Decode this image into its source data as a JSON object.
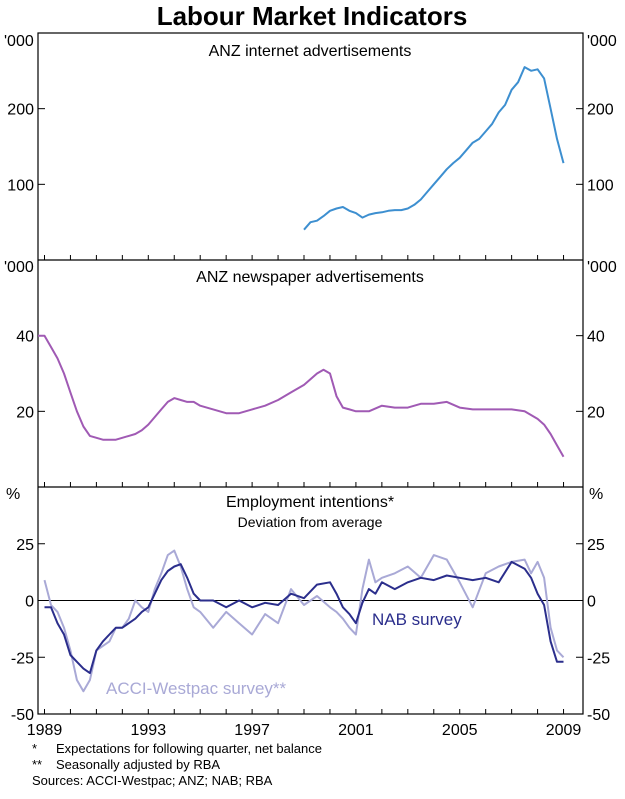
{
  "title": "Labour Market Indicators",
  "x_ticks": [
    "1989",
    "1993",
    "1997",
    "2001",
    "2005",
    "2009"
  ],
  "colors": {
    "anz_internet": "#3d8fd0",
    "anz_newspaper": "#a05ab4",
    "nab": "#2b2e8c",
    "acci": "#a9a9d6",
    "axis": "#000000"
  },
  "chart_data": [
    {
      "type": "line",
      "title": "ANZ internet advertisements",
      "unit_label": "'000",
      "ylim": [
        0,
        300
      ],
      "y_ticks": [
        "200",
        "100"
      ],
      "y_tick_values": [
        200,
        100
      ],
      "x_range": [
        1988.75,
        2009.75
      ],
      "series": [
        {
          "name": "ANZ internet advertisements",
          "x": [
            1999.0,
            1999.25,
            1999.5,
            1999.75,
            2000.0,
            2000.25,
            2000.5,
            2000.75,
            2001.0,
            2001.25,
            2001.5,
            2001.75,
            2002.0,
            2002.25,
            2002.5,
            2002.75,
            2003.0,
            2003.25,
            2003.5,
            2003.75,
            2004.0,
            2004.25,
            2004.5,
            2004.75,
            2005.0,
            2005.25,
            2005.5,
            2005.75,
            2006.0,
            2006.25,
            2006.5,
            2006.75,
            2007.0,
            2007.25,
            2007.5,
            2007.75,
            2008.0,
            2008.25,
            2008.5,
            2008.75,
            2009.0
          ],
          "values": [
            40,
            50,
            52,
            58,
            65,
            68,
            70,
            65,
            62,
            56,
            60,
            62,
            63,
            65,
            66,
            66,
            68,
            73,
            80,
            90,
            100,
            110,
            120,
            128,
            135,
            145,
            155,
            160,
            170,
            180,
            195,
            205,
            225,
            235,
            255,
            250,
            252,
            240,
            200,
            160,
            128
          ]
        }
      ]
    },
    {
      "type": "line",
      "title": "ANZ newspaper advertisements",
      "unit_label": "'000",
      "ylim": [
        0,
        60
      ],
      "y_ticks": [
        "40",
        "20"
      ],
      "y_tick_values": [
        40,
        20
      ],
      "x_range": [
        1988.75,
        2009.75
      ],
      "series": [
        {
          "name": "ANZ newspaper advertisements",
          "x": [
            1988.75,
            1989.0,
            1989.25,
            1989.5,
            1989.75,
            1990.0,
            1990.25,
            1990.5,
            1990.75,
            1991.0,
            1991.25,
            1991.5,
            1991.75,
            1992.0,
            1992.25,
            1992.5,
            1992.75,
            1993.0,
            1993.25,
            1993.5,
            1993.75,
            1994.0,
            1994.25,
            1994.5,
            1994.75,
            1995.0,
            1995.5,
            1996.0,
            1996.5,
            1997.0,
            1997.5,
            1998.0,
            1998.5,
            1999.0,
            1999.5,
            1999.75,
            2000.0,
            2000.25,
            2000.5,
            2000.75,
            2001.0,
            2001.5,
            2002.0,
            2002.5,
            2003.0,
            2003.5,
            2004.0,
            2004.5,
            2005.0,
            2005.5,
            2006.0,
            2006.5,
            2007.0,
            2007.5,
            2008.0,
            2008.25,
            2008.5,
            2008.75,
            2009.0
          ],
          "values": [
            40,
            40,
            37,
            34,
            30,
            25,
            20,
            16,
            13.5,
            13,
            12.5,
            12.5,
            12.5,
            13,
            13.5,
            14,
            15,
            16.5,
            18.5,
            20.5,
            22.5,
            23.5,
            23,
            22.5,
            22.5,
            21.5,
            20.5,
            19.5,
            19.5,
            20.5,
            21.5,
            23,
            25,
            27,
            30,
            31,
            30,
            24,
            21,
            20.5,
            20,
            20,
            21.5,
            21,
            21,
            22,
            22,
            22.5,
            21,
            20.5,
            20.5,
            20.5,
            20.5,
            20,
            18,
            16.5,
            14,
            11,
            8
          ]
        }
      ]
    },
    {
      "type": "line",
      "title": "Employment intentions*",
      "subtitle": "Deviation from average",
      "unit_label": "%",
      "ylim": [
        -50,
        50
      ],
      "y_ticks": [
        "25",
        "0",
        "-25",
        "-50"
      ],
      "y_tick_values": [
        25,
        0,
        -25,
        -50
      ],
      "x_range": [
        1988.75,
        2009.75
      ],
      "series": [
        {
          "name": "NAB survey",
          "x": [
            1989.0,
            1989.25,
            1989.5,
            1989.75,
            1990.0,
            1990.25,
            1990.5,
            1990.75,
            1991.0,
            1991.25,
            1991.5,
            1991.75,
            1992.0,
            1992.25,
            1992.5,
            1992.75,
            1993.0,
            1993.25,
            1993.5,
            1993.75,
            1994.0,
            1994.25,
            1994.5,
            1994.75,
            1995.0,
            1995.5,
            1996.0,
            1996.5,
            1997.0,
            1997.5,
            1998.0,
            1998.5,
            1999.0,
            1999.5,
            2000.0,
            2000.25,
            2000.5,
            2000.75,
            2001.0,
            2001.25,
            2001.5,
            2001.75,
            2002.0,
            2002.5,
            2003.0,
            2003.5,
            2004.0,
            2004.5,
            2005.0,
            2005.5,
            2006.0,
            2006.5,
            2007.0,
            2007.5,
            2007.75,
            2008.0,
            2008.25,
            2008.5,
            2008.75,
            2009.0
          ],
          "values": [
            -3,
            -3,
            -10,
            -15,
            -24,
            -27,
            -30,
            -32,
            -22,
            -18,
            -15,
            -12,
            -12,
            -10,
            -8,
            -5,
            -3,
            3,
            9,
            13,
            15,
            16,
            10,
            3,
            0,
            0,
            -3,
            0,
            -3,
            -1,
            -2,
            3,
            1,
            7,
            8,
            3,
            -3,
            -6,
            -10,
            -1,
            5,
            3,
            8,
            5,
            8,
            10,
            9,
            11,
            10,
            9,
            10,
            8,
            17,
            14,
            10,
            3,
            -2,
            -18,
            -27,
            -27
          ]
        },
        {
          "name": "ACCI-Westpac survey**",
          "x": [
            1989.0,
            1989.25,
            1989.5,
            1989.75,
            1990.0,
            1990.25,
            1990.5,
            1990.75,
            1991.0,
            1991.25,
            1991.5,
            1991.75,
            1992.0,
            1992.25,
            1992.5,
            1992.75,
            1993.0,
            1993.25,
            1993.5,
            1993.75,
            1994.0,
            1994.25,
            1994.5,
            1994.75,
            1995.0,
            1995.5,
            1996.0,
            1996.5,
            1997.0,
            1997.5,
            1998.0,
            1998.5,
            1999.0,
            1999.5,
            2000.0,
            2000.25,
            2000.5,
            2000.75,
            2001.0,
            2001.25,
            2001.5,
            2001.75,
            2002.0,
            2002.5,
            2003.0,
            2003.5,
            2004.0,
            2004.5,
            2005.0,
            2005.5,
            2006.0,
            2006.5,
            2007.0,
            2007.5,
            2007.75,
            2008.0,
            2008.25,
            2008.5,
            2008.75,
            2009.0
          ],
          "values": [
            9,
            -2,
            -5,
            -12,
            -22,
            -35,
            -40,
            -35,
            -22,
            -20,
            -18,
            -12,
            -12,
            -8,
            0,
            -3,
            -5,
            5,
            12,
            20,
            22,
            15,
            5,
            -3,
            -5,
            -12,
            -5,
            -10,
            -15,
            -6,
            -10,
            5,
            -2,
            2,
            -3,
            -5,
            -8,
            -12,
            -15,
            5,
            18,
            8,
            10,
            12,
            15,
            10,
            20,
            18,
            8,
            -3,
            12,
            15,
            17,
            18,
            12,
            17,
            10,
            -12,
            -22,
            -25
          ]
        }
      ]
    }
  ],
  "series_labels": {
    "nab": "NAB survey",
    "acci": "ACCI-Westpac survey**"
  },
  "notes": [
    {
      "marker": "*",
      "text": "Expectations for following quarter, net balance"
    },
    {
      "marker": "**",
      "text": "Seasonally adjusted by RBA"
    },
    {
      "marker": "",
      "text": "Sources: ACCI-Westpac; ANZ; NAB; RBA"
    }
  ]
}
